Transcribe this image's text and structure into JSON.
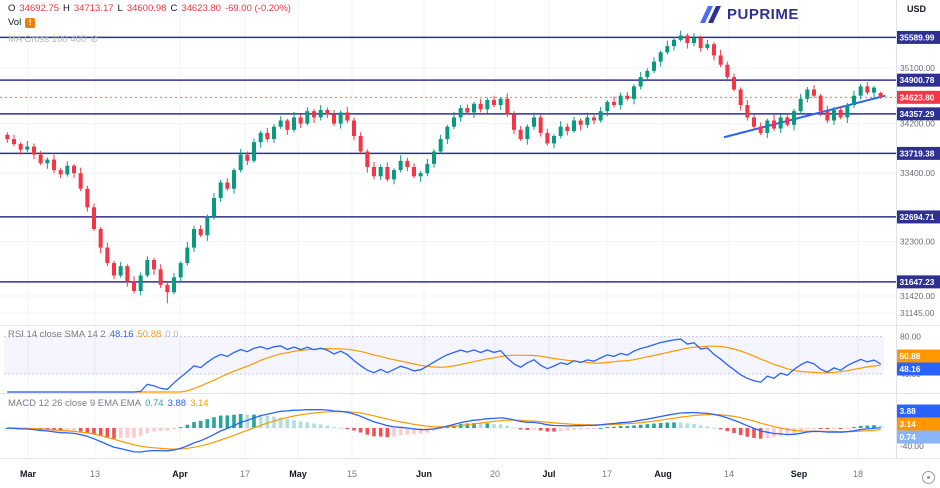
{
  "window": {
    "currency": "USD"
  },
  "logo": {
    "brand": "PUPRIME"
  },
  "legend": {
    "ohlc": {
      "o_label": "O",
      "o": "34692.75",
      "h_label": "H",
      "h": "34713.17",
      "l_label": "L",
      "l": "34600.98",
      "c_label": "C",
      "c": "34623.80",
      "change": "-69.00 (-0.20%)"
    },
    "volume": {
      "label": "Vol",
      "warning": "!"
    },
    "ma_cross": {
      "label": "MA Cross 100 400"
    }
  },
  "price_axis": {
    "plain_labels": [
      "35100.00",
      "34200.00",
      "33400.00",
      "32300.00",
      "31420.00",
      "31145.00"
    ]
  },
  "time_axis": {
    "labels": [
      "Mar",
      "13",
      "Apr",
      "17",
      "May",
      "15",
      "Jun",
      "20",
      "Jul",
      "17",
      "Aug",
      "14",
      "Sep",
      "18"
    ]
  },
  "rsi_panel": {
    "title": "RSI 14 close SMA 14 2",
    "value_rsi": "48.16",
    "value_sma": "50.88",
    "extra": "0 0",
    "axis_labels": [
      "80.00",
      "40.00"
    ],
    "badges": [
      {
        "value": "50.88",
        "color": "#ff9800"
      },
      {
        "value": "48.16",
        "color": "#2962ff"
      }
    ]
  },
  "macd_panel": {
    "title": "MACD 12 26 close 9 EMA EMA",
    "value_hist": "0.74",
    "value_macd": "3.88",
    "value_signal": "3.14",
    "axis_labels": [
      "40.00",
      "-40.00"
    ],
    "badges": [
      {
        "value": "3.88",
        "color": "#2962ff"
      },
      {
        "value": "3.14",
        "color": "#ff9800"
      },
      {
        "value": "0.74",
        "color": "#8ab4f8"
      }
    ]
  },
  "chart_data": {
    "type": "candlestick",
    "currency": "USD",
    "ylim": [
      31000,
      36000
    ],
    "x_range": [
      "Mar",
      "Sep 18"
    ],
    "current_price": 34623.8,
    "ohlc_last": {
      "open": 34692.75,
      "high": 34713.17,
      "low": 34600.98,
      "close": 34623.8,
      "change": -69.0,
      "change_pct": -0.2
    },
    "levels": [
      {
        "price": 35589.99,
        "label": "35589.99",
        "color": "#2e3192",
        "type": "horizontal-line"
      },
      {
        "price": 34900.78,
        "label": "34900.78",
        "color": "#2e3192",
        "type": "horizontal-line"
      },
      {
        "price": 34623.8,
        "label": "34623.80",
        "color": "#f23645",
        "type": "current-price"
      },
      {
        "price": 34357.29,
        "label": "34357.29",
        "color": "#2e3192",
        "type": "horizontal-line"
      },
      {
        "price": 33719.38,
        "label": "33719.38",
        "color": "#2e3192",
        "type": "horizontal-line"
      },
      {
        "price": 32694.71,
        "label": "32694.71",
        "color": "#2e3192",
        "type": "horizontal-line"
      },
      {
        "price": 31647.23,
        "label": "31647.23",
        "color": "#2e3192",
        "type": "horizontal-line"
      }
    ],
    "trendline": {
      "x1_index": 107.5,
      "price1": 33980,
      "x2_index": 131.7,
      "price2": 34650,
      "color": "#2962ff"
    },
    "indicators": [
      {
        "name": "RSI",
        "params": "14 close, SMA 14",
        "last": 48.16,
        "sma_last": 50.88,
        "band_shown": [
          40,
          80
        ]
      },
      {
        "name": "MACD",
        "params": "12 26 close 9 EMA EMA",
        "hist_last": 0.74,
        "macd_last": 3.88,
        "signal_last": 3.14
      }
    ],
    "colors": {
      "up": "#089981",
      "down": "#f23645",
      "level": "#2e3192",
      "trend": "#2962ff",
      "rsi": "#2962ff",
      "rsi_sma": "#ff9800",
      "macd": "#2962ff",
      "signal": "#ff9800"
    },
    "candles": [
      [
        34020,
        34060,
        33890,
        33950
      ],
      [
        33950,
        34020,
        33835,
        33870
      ],
      [
        33870,
        33900,
        33700,
        33780
      ],
      [
        33780,
        33920,
        33740,
        33830
      ],
      [
        33830,
        33880,
        33630,
        33700
      ],
      [
        33700,
        33760,
        33530,
        33560
      ],
      [
        33560,
        33655,
        33470,
        33620
      ],
      [
        33620,
        33700,
        33400,
        33450
      ],
      [
        33450,
        33490,
        33320,
        33380
      ],
      [
        33380,
        33590,
        33345,
        33520
      ],
      [
        33520,
        33550,
        33320,
        33400
      ],
      [
        33400,
        33490,
        33110,
        33150
      ],
      [
        33150,
        33200,
        32780,
        32850
      ],
      [
        32850,
        32910,
        32470,
        32500
      ],
      [
        32500,
        32535,
        32110,
        32200
      ],
      [
        32200,
        32280,
        31900,
        31950
      ],
      [
        31950,
        31990,
        31690,
        31750
      ],
      [
        31750,
        31970,
        31715,
        31900
      ],
      [
        31900,
        31930,
        31570,
        31650
      ],
      [
        31650,
        31740,
        31460,
        31500
      ],
      [
        31500,
        31800,
        31430,
        31750
      ],
      [
        31750,
        32060,
        31720,
        32000
      ],
      [
        32000,
        32035,
        31760,
        31850
      ],
      [
        31850,
        31930,
        31550,
        31600
      ],
      [
        31600,
        31650,
        31300,
        31480
      ],
      [
        31480,
        31790,
        31445,
        31720
      ],
      [
        31720,
        31980,
        31640,
        31950
      ],
      [
        31950,
        32290,
        31910,
        32200
      ],
      [
        32200,
        32550,
        32130,
        32500
      ],
      [
        32500,
        32560,
        32370,
        32400
      ],
      [
        32400,
        32735,
        32310,
        32700
      ],
      [
        32700,
        33080,
        32650,
        33000
      ],
      [
        33000,
        33290,
        32940,
        33250
      ],
      [
        33250,
        33320,
        33115,
        33150
      ],
      [
        33150,
        33480,
        33070,
        33450
      ],
      [
        33450,
        33790,
        33410,
        33700
      ],
      [
        33700,
        33750,
        33530,
        33600
      ],
      [
        33600,
        33960,
        33570,
        33900
      ],
      [
        33900,
        34085,
        33810,
        34050
      ],
      [
        34050,
        34130,
        33900,
        33950
      ],
      [
        33950,
        34190,
        33890,
        34150
      ],
      [
        34150,
        34320,
        34115,
        34250
      ],
      [
        34250,
        34280,
        34020,
        34100
      ],
      [
        34100,
        34390,
        34060,
        34300
      ],
      [
        34300,
        34350,
        34130,
        34200
      ],
      [
        34200,
        34460,
        34170,
        34400
      ],
      [
        34400,
        34435,
        34210,
        34300
      ],
      [
        34300,
        34500,
        34250,
        34420
      ],
      [
        34420,
        34460,
        34290,
        34350
      ],
      [
        34350,
        34420,
        34165,
        34200
      ],
      [
        34200,
        34410,
        34120,
        34380
      ],
      [
        34380,
        34470,
        34210,
        34250
      ],
      [
        34250,
        34300,
        33930,
        34000
      ],
      [
        34000,
        34060,
        33720,
        33750
      ],
      [
        33750,
        33785,
        33410,
        33500
      ],
      [
        33500,
        33580,
        33300,
        33350
      ],
      [
        33350,
        33540,
        33290,
        33500
      ],
      [
        33500,
        33570,
        33265,
        33300
      ],
      [
        33300,
        33480,
        33220,
        33450
      ],
      [
        33450,
        33690,
        33410,
        33600
      ],
      [
        33600,
        33650,
        33430,
        33500
      ],
      [
        33500,
        33560,
        33320,
        33350
      ],
      [
        33350,
        33435,
        33260,
        33400
      ],
      [
        33400,
        33630,
        33350,
        33550
      ],
      [
        33550,
        33790,
        33490,
        33750
      ],
      [
        33750,
        34020,
        33715,
        33950
      ],
      [
        33950,
        34180,
        33870,
        34150
      ],
      [
        34150,
        34390,
        34110,
        34300
      ],
      [
        34300,
        34500,
        34230,
        34450
      ],
      [
        34450,
        34510,
        34350,
        34380
      ],
      [
        34380,
        34555,
        34290,
        34520
      ],
      [
        34520,
        34600,
        34380,
        34430
      ],
      [
        34430,
        34620,
        34370,
        34580
      ],
      [
        34580,
        34650,
        34465,
        34500
      ],
      [
        34500,
        34630,
        34420,
        34600
      ],
      [
        34600,
        34690,
        34310,
        34350
      ],
      [
        34350,
        34400,
        34030,
        34100
      ],
      [
        34100,
        34160,
        33920,
        33950
      ],
      [
        33950,
        34185,
        33860,
        34150
      ],
      [
        34150,
        34380,
        34100,
        34300
      ],
      [
        34300,
        34340,
        33990,
        34050
      ],
      [
        34050,
        34120,
        33845,
        33880
      ],
      [
        33880,
        34030,
        33800,
        34000
      ],
      [
        34000,
        34240,
        33960,
        34150
      ],
      [
        34150,
        34200,
        34010,
        34080
      ],
      [
        34080,
        34310,
        34050,
        34250
      ],
      [
        34250,
        34285,
        34090,
        34180
      ],
      [
        34180,
        34380,
        34130,
        34300
      ],
      [
        34300,
        34340,
        34190,
        34250
      ],
      [
        34250,
        34470,
        34215,
        34400
      ],
      [
        34400,
        34580,
        34320,
        34550
      ],
      [
        34550,
        34640,
        34460,
        34500
      ],
      [
        34500,
        34700,
        34430,
        34650
      ],
      [
        34650,
        34710,
        34570,
        34600
      ],
      [
        34600,
        34835,
        34510,
        34800
      ],
      [
        34800,
        35030,
        34750,
        34950
      ],
      [
        34950,
        35090,
        34890,
        35050
      ],
      [
        35050,
        35270,
        35015,
        35200
      ],
      [
        35200,
        35380,
        35120,
        35350
      ],
      [
        35350,
        35540,
        35310,
        35450
      ],
      [
        35450,
        35600,
        35380,
        35550
      ],
      [
        35550,
        35700,
        35520,
        35620
      ],
      [
        35620,
        35655,
        35410,
        35500
      ],
      [
        35500,
        35660,
        35450,
        35580
      ],
      [
        35580,
        35620,
        35360,
        35420
      ],
      [
        35420,
        35550,
        35385,
        35480
      ],
      [
        35480,
        35510,
        35220,
        35300
      ],
      [
        35300,
        35390,
        35110,
        35150
      ],
      [
        35150,
        35200,
        34880,
        34950
      ],
      [
        34950,
        35010,
        34720,
        34750
      ],
      [
        34750,
        34785,
        34410,
        34500
      ],
      [
        34500,
        34580,
        34250,
        34300
      ],
      [
        34300,
        34340,
        34090,
        34150
      ],
      [
        34150,
        34220,
        34015,
        34050
      ],
      [
        34050,
        34280,
        33970,
        34250
      ],
      [
        34250,
        34340,
        34080,
        34120
      ],
      [
        34120,
        34350,
        34050,
        34300
      ],
      [
        34300,
        34360,
        34150,
        34180
      ],
      [
        34180,
        34435,
        34090,
        34400
      ],
      [
        34400,
        34680,
        34350,
        34600
      ],
      [
        34600,
        34790,
        34540,
        34750
      ],
      [
        34750,
        34820,
        34615,
        34650
      ],
      [
        34650,
        34680,
        34320,
        34400
      ],
      [
        34400,
        34490,
        34210,
        34250
      ],
      [
        34250,
        34470,
        34180,
        34420
      ],
      [
        34420,
        34480,
        34270,
        34300
      ],
      [
        34300,
        34535,
        34210,
        34500
      ],
      [
        34500,
        34730,
        34450,
        34650
      ],
      [
        34650,
        34840,
        34590,
        34800
      ],
      [
        34800,
        34870,
        34665,
        34700
      ],
      [
        34700,
        34810,
        34620,
        34780
      ],
      [
        34692.75,
        34713.17,
        34600.98,
        34623.8
      ]
    ]
  }
}
